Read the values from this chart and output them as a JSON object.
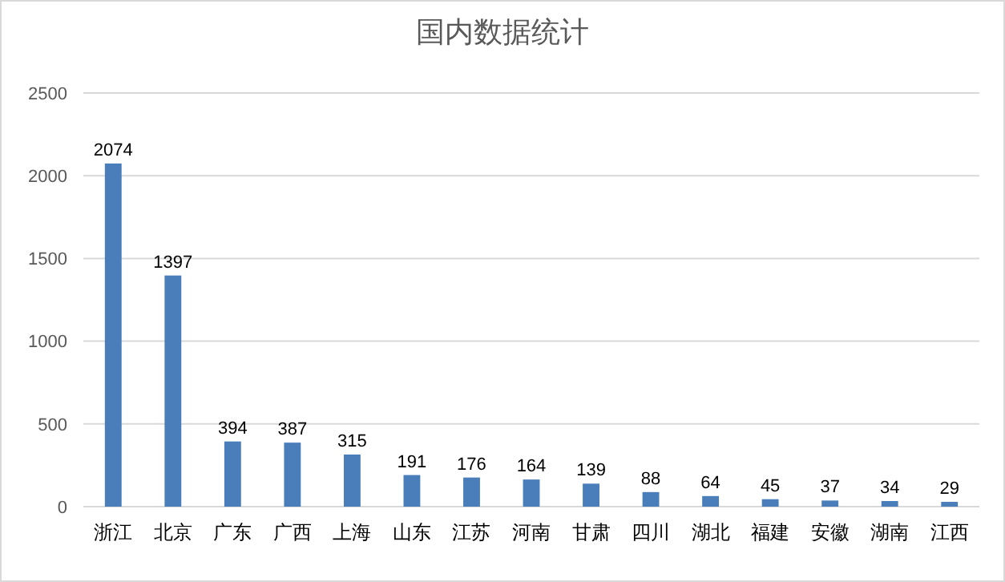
{
  "chart_data": {
    "type": "bar",
    "title": "国内数据统计",
    "categories": [
      "浙江",
      "北京",
      "广东",
      "广西",
      "上海",
      "山东",
      "江苏",
      "河南",
      "甘肃",
      "四川",
      "湖北",
      "福建",
      "安徽",
      "湖南",
      "江西"
    ],
    "values": [
      2074,
      1397,
      394,
      387,
      315,
      191,
      176,
      164,
      139,
      88,
      64,
      45,
      37,
      34,
      29
    ],
    "color": "#4a7ebb",
    "ylim": [
      0,
      2500
    ],
    "yticks": [
      0,
      500,
      1000,
      1500,
      2000,
      2500
    ],
    "grid": "y",
    "data_labels": true
  }
}
